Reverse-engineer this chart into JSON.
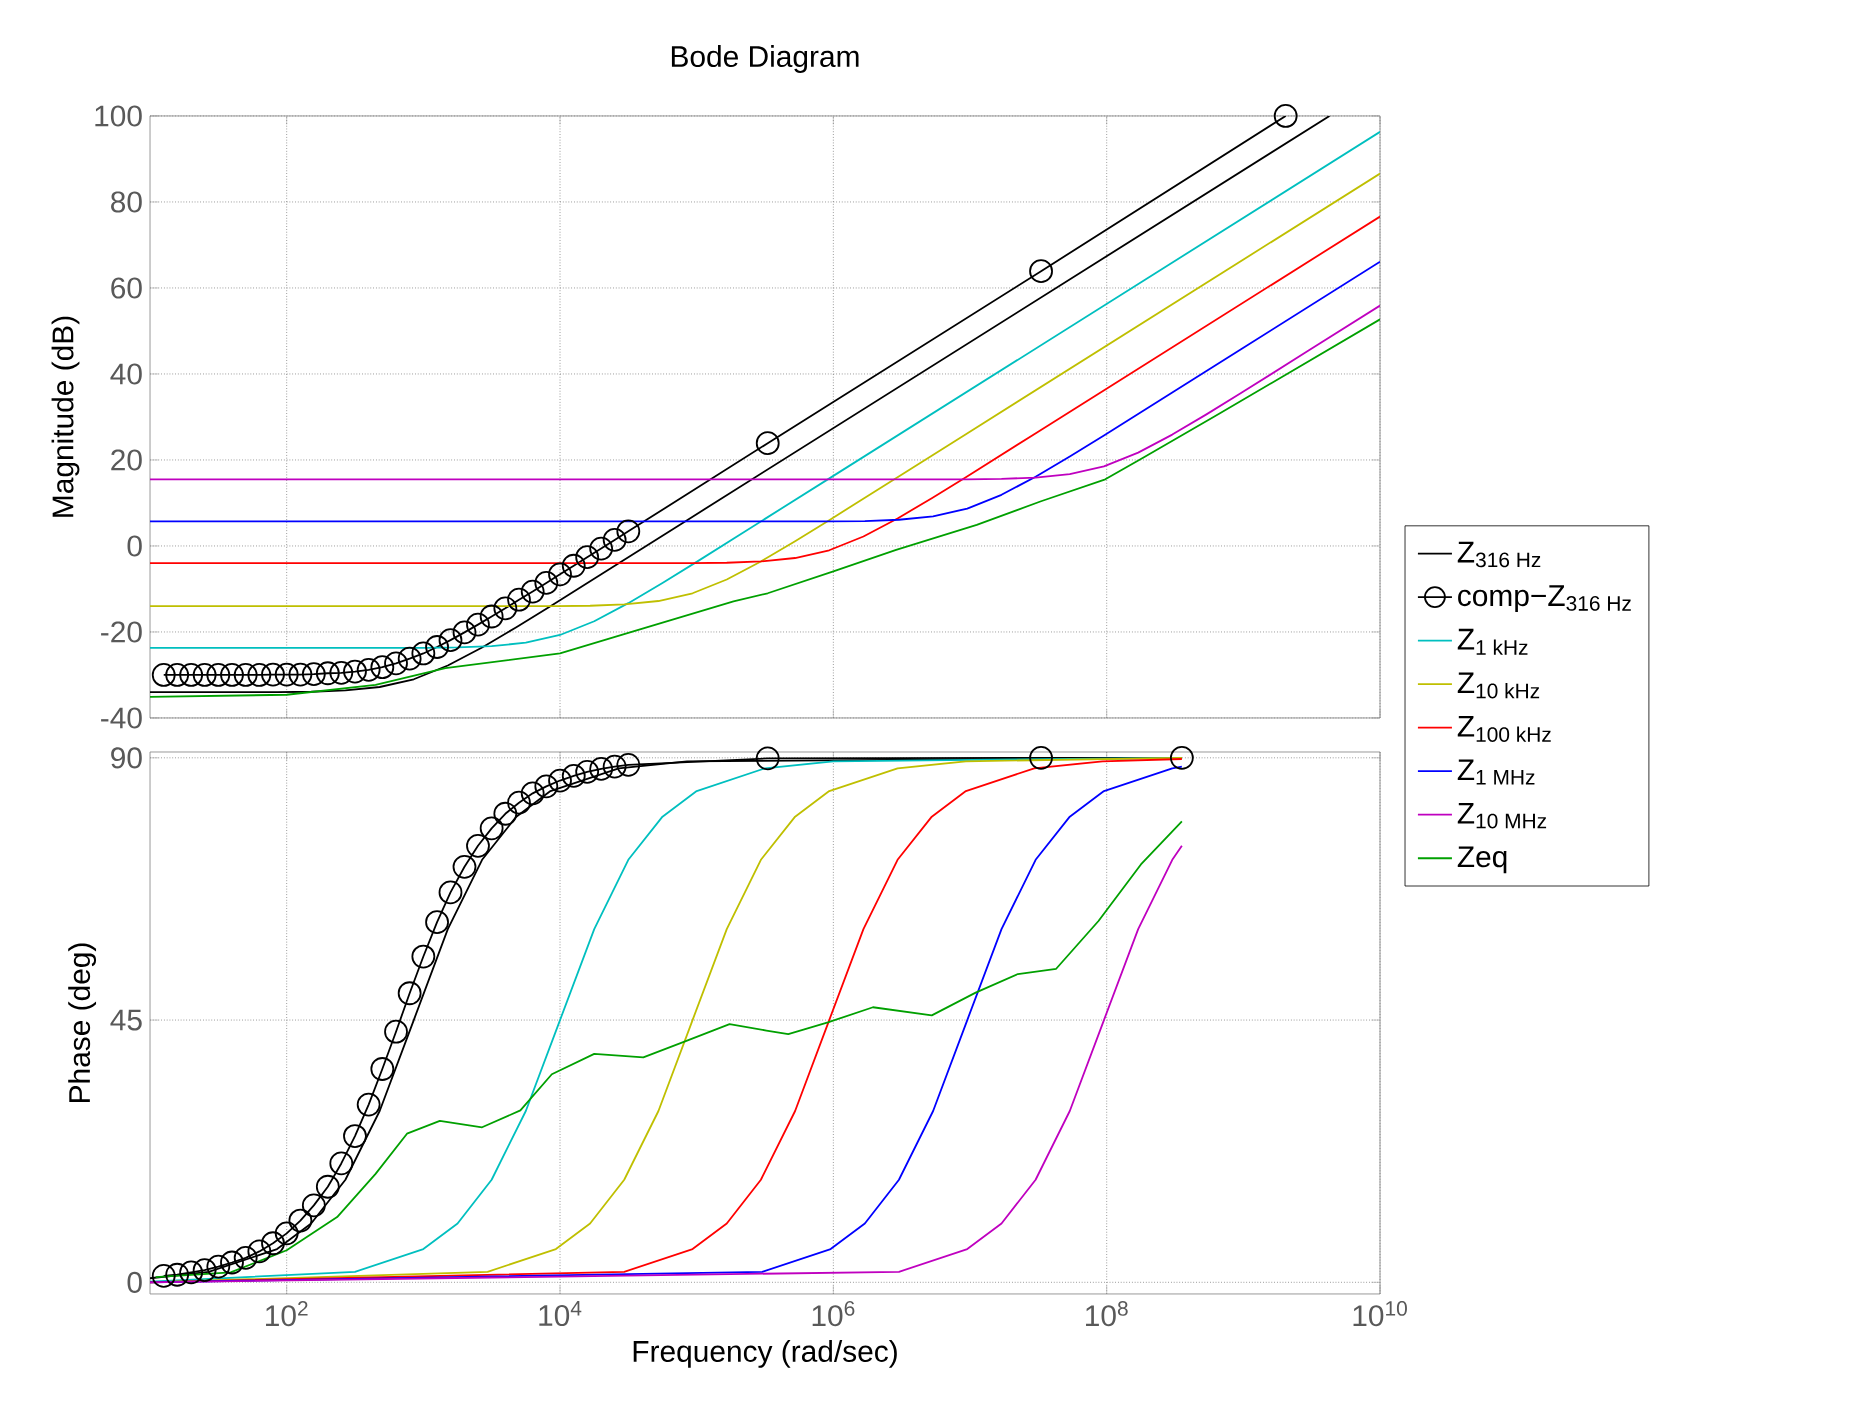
{
  "chart_data": [
    {
      "type": "line",
      "title": "Bode Diagram",
      "ylabel": "Magnitude (dB)",
      "log": "x",
      "grid": true,
      "tick_labels": "y",
      "xlim": [
        10,
        10000000000
      ],
      "ylim": [
        -40,
        100
      ],
      "xticks": [
        {
          "value": 100,
          "label": null
        },
        {
          "value": 10000,
          "label": null
        },
        {
          "value": 1000000,
          "label": null
        },
        {
          "value": 100000000,
          "label": null
        },
        {
          "value": 10000000000,
          "label": null
        }
      ],
      "yticks": [
        -40,
        -20,
        0,
        20,
        40,
        60,
        80,
        100
      ],
      "series": [
        {
          "color": "#000000",
          "x": [
            10.0,
            26.9,
            85.1,
            151.0,
            269.0,
            479.0,
            851.0,
            1510.0,
            2690.0,
            4790.0,
            8510.0,
            26900.0,
            85100.0,
            4270000000.0
          ],
          "values": [
            -34.0,
            -34.0,
            -34.0,
            -33.9,
            -33.6,
            -32.8,
            -31.0,
            -27.8,
            -23.6,
            -18.9,
            -14.0,
            -4.0,
            6.0,
            100
          ]
        },
        {
          "color": "#000000",
          "marker": "circle",
          "x": [
            12.6,
            15.8,
            20.0,
            25.1,
            31.6,
            39.8,
            50.1,
            63.1,
            79.4,
            100.0,
            126.0,
            158.0,
            200.0,
            251.0,
            316.0,
            398.0,
            501.0,
            631.0,
            794.0,
            1000.0,
            1260.0,
            1580.0,
            2000.0,
            2510.0,
            3160.0,
            3980.0,
            5010.0,
            6310.0,
            7940.0,
            10000.0,
            12600.0,
            15800.0,
            20000.0,
            25100.0,
            31600.0,
            331000.0,
            33100000.0,
            2040000000.0
          ],
          "values": [
            -30.0,
            -30.0,
            -30.0,
            -30.0,
            -30.0,
            -30.0,
            -30.0,
            -30.0,
            -29.9,
            -29.9,
            -29.9,
            -29.8,
            -29.6,
            -29.5,
            -29.2,
            -28.8,
            -28.2,
            -27.3,
            -26.2,
            -25.0,
            -23.5,
            -21.9,
            -20.1,
            -18.3,
            -16.4,
            -14.5,
            -12.5,
            -10.6,
            -8.6,
            -6.6,
            -4.6,
            -2.6,
            -0.6,
            1.4,
            3.4,
            23.9,
            63.9,
            100
          ]
        },
        {
          "color": "#00bfbf",
          "x": [
            10.0,
            316.0,
            1000.0,
            1780.0,
            3160.0,
            5620.0,
            10000.0,
            17800.0,
            31600.0,
            56200.0,
            100000.0,
            316000.0,
            1000000.0,
            10000000000.0
          ],
          "values": [
            -23.7,
            -23.7,
            -23.7,
            -23.6,
            -23.3,
            -22.5,
            -20.7,
            -17.5,
            -13.3,
            -8.6,
            -3.7,
            6.3,
            16.3,
            96.3
          ]
        },
        {
          "color": "#bfbf00",
          "x": [
            10.0,
            2950.0,
            9330.0,
            16600.0,
            29500.0,
            52500.0,
            93300.0,
            166000.0,
            295000.0,
            525000.0,
            933000.0,
            2950000.0,
            9330000.0,
            10000000000.0
          ],
          "values": [
            -14.0,
            -14.0,
            -14.0,
            -13.9,
            -13.6,
            -12.8,
            -11.0,
            -7.8,
            -3.6,
            1.1,
            6.0,
            16.0,
            26.0,
            86.6
          ]
        },
        {
          "color": "#ff0000",
          "x": [
            10.0,
            29500.0,
            93300.0,
            166000.0,
            295000.0,
            525000.0,
            933000.0,
            1660000.0,
            2950000.0,
            5250000.0,
            9330000.0,
            29500000.0,
            93300000.0,
            10000000000.0
          ],
          "values": [
            -4.0,
            -4.0,
            -4.0,
            -3.9,
            -3.6,
            -2.8,
            -1.0,
            2.2,
            6.4,
            11.1,
            16.0,
            26.0,
            36.0,
            76.6
          ]
        },
        {
          "color": "#0000ff",
          "x": [
            10.0,
            302000.0,
            955000.0,
            1700000.0,
            3020000.0,
            5370000.0,
            9550000.0,
            17000000.0,
            30200000.0,
            53700000.0,
            95500000.0,
            302000000.0,
            955000000.0,
            10000000000.0
          ],
          "values": [
            5.7,
            5.7,
            5.7,
            5.8,
            6.1,
            6.9,
            8.7,
            11.9,
            16.1,
            20.8,
            25.7,
            35.7,
            45.7,
            66.1
          ]
        },
        {
          "color": "#bf00bf",
          "x": [
            10.0,
            3020000.0,
            9550000.0,
            17000000.0,
            30200000.0,
            53700000.0,
            95500000.0,
            170000000.0,
            302000000.0,
            537000000.0,
            955000000.0,
            3020000000.0,
            10000000000.0
          ],
          "values": [
            15.5,
            15.5,
            15.5,
            15.6,
            15.9,
            16.7,
            18.5,
            21.7,
            25.9,
            30.6,
            35.5,
            45.5,
            55.9
          ]
        },
        {
          "color": "#00a000",
          "x": [
            10.0,
            100.0,
            447.0,
            1450.0,
            10000.0,
            33900.0,
            186000.0,
            331000.0,
            1000000.0,
            2880000.0,
            11200000.0,
            33100000.0,
            97700000.0,
            182000000.0,
            646000000.0,
            10000000000.0
          ],
          "values": [
            -35.1,
            -34.6,
            -32.3,
            -28.4,
            -25.0,
            -19.9,
            -12.9,
            -11.0,
            -5.9,
            -0.9,
            4.9,
            10.4,
            15.5,
            20.4,
            30.5,
            52.7
          ]
        }
      ]
    },
    {
      "type": "line",
      "xlabel": "Frequency  (rad/sec)",
      "ylabel": "Phase (deg)",
      "log": "x",
      "grid": true,
      "legend": "right",
      "xlim": [
        10,
        10000000000
      ],
      "ylim": [
        -2,
        91
      ],
      "xticks": [
        {
          "value": 100,
          "label": "10$^{2}$"
        },
        {
          "value": 10000,
          "label": "10$^{4}$"
        },
        {
          "value": 1000000,
          "label": "10$^{6}$"
        },
        {
          "value": 100000000,
          "label": "10$^{8}$"
        },
        {
          "value": 10000000000,
          "label": "10$^{10}$"
        }
      ],
      "yticks": [
        0,
        45,
        90
      ],
      "series": [
        {
          "name": "Z$_{316 Hz}$",
          "color": "#000000",
          "x": [
            10.0,
            26.9,
            85.1,
            151.0,
            269.0,
            479.0,
            851.0,
            1510.0,
            2690.0,
            4790.0,
            8510.0,
            26900.0,
            85100.0,
            355000000.0
          ],
          "values": [
            0.7,
            1.8,
            5.7,
            10.1,
            17.6,
            29.4,
            45.0,
            60.6,
            72.5,
            79.9,
            84.3,
            88.2,
            89.4,
            90.0
          ]
        },
        {
          "name": "comp−Z$_{316 Hz}$",
          "color": "#000000",
          "marker": "circle",
          "x": [
            12.6,
            15.8,
            20.0,
            25.1,
            31.6,
            39.8,
            50.1,
            63.1,
            79.4,
            100.0,
            126.0,
            158.0,
            200.0,
            251.0,
            316.0,
            398.0,
            501.0,
            631.0,
            794.0,
            1000.0,
            1260.0,
            1580.0,
            2000.0,
            2510.0,
            3160.0,
            3980.0,
            5010.0,
            6310.0,
            7940.0,
            10000.0,
            12600.0,
            15800.0,
            20000.0,
            25100.0,
            31600.0,
            331000.0,
            33100000.0,
            355000000.0
          ],
          "values": [
            1.1,
            1.3,
            1.7,
            2.1,
            2.7,
            3.4,
            4.2,
            5.3,
            6.7,
            8.4,
            10.6,
            13.2,
            16.4,
            20.4,
            25.1,
            30.5,
            36.6,
            43.0,
            49.6,
            55.9,
            61.8,
            66.9,
            71.3,
            74.9,
            77.9,
            80.4,
            82.3,
            83.9,
            85.1,
            86.1,
            86.9,
            87.6,
            88.1,
            88.5,
            88.8,
            89.9,
            90.0,
            90.0
          ]
        },
        {
          "name": "Z$_{1 kHz}$",
          "color": "#00bfbf",
          "x": [
            10.0,
            316.0,
            1000.0,
            1780.0,
            3160.0,
            5620.0,
            10000.0,
            17800.0,
            31600.0,
            56200.0,
            100000.0,
            316000.0,
            1000000.0,
            355000000.0
          ],
          "values": [
            0.1,
            1.8,
            5.7,
            10.1,
            17.6,
            29.4,
            45.0,
            60.6,
            72.5,
            79.9,
            84.3,
            88.2,
            89.4,
            90.0
          ]
        },
        {
          "name": "Z$_{10 kHz}$",
          "color": "#bfbf00",
          "x": [
            10.0,
            2950.0,
            9330.0,
            16600.0,
            29500.0,
            52500.0,
            93300.0,
            166000.0,
            295000.0,
            525000.0,
            933000.0,
            2950000.0,
            9330000.0,
            355000000.0
          ],
          "values": [
            0.0,
            1.8,
            5.7,
            10.1,
            17.6,
            29.4,
            45.0,
            60.6,
            72.5,
            79.9,
            84.3,
            88.2,
            89.4,
            90.0
          ]
        },
        {
          "name": "Z$_{100 kHz}$",
          "color": "#ff0000",
          "x": [
            10.0,
            29500.0,
            93300.0,
            166000.0,
            295000.0,
            525000.0,
            933000.0,
            1660000.0,
            2950000.0,
            5250000.0,
            9330000.0,
            29500000.0,
            93300000.0,
            355000000.0
          ],
          "values": [
            0.0,
            1.8,
            5.7,
            10.1,
            17.6,
            29.4,
            45.0,
            60.6,
            72.5,
            79.9,
            84.3,
            88.2,
            89.4,
            89.8
          ]
        },
        {
          "name": "Z$_{1 MHz}$",
          "color": "#0000ff",
          "x": [
            10.0,
            302000.0,
            955000.0,
            1700000.0,
            3020000.0,
            5370000.0,
            9550000.0,
            17000000.0,
            30200000.0,
            53700000.0,
            95500000.0,
            302000000.0,
            355000000.0
          ],
          "values": [
            0.0,
            1.8,
            5.7,
            10.1,
            17.6,
            29.4,
            45.0,
            60.6,
            72.5,
            79.9,
            84.3,
            88.2,
            88.5
          ]
        },
        {
          "name": "Z$_{10 MHz}$",
          "color": "#bf00bf",
          "x": [
            10.0,
            3020000.0,
            9550000.0,
            17000000.0,
            30200000.0,
            53700000.0,
            95500000.0,
            170000000.0,
            302000000.0,
            355000000.0
          ],
          "values": [
            0.0,
            1.8,
            5.7,
            10.1,
            17.6,
            29.4,
            45.0,
            60.6,
            72.5,
            74.9
          ]
        },
        {
          "name": "Zeq",
          "color": "#00a000",
          "x": [
            11.0,
            38.9,
            100.0,
            234.0,
            447.0,
            759.0,
            1320.0,
            2690.0,
            5130.0,
            8710.0,
            17800.0,
            40700.0,
            83200.0,
            174000.0,
            324000.0,
            468000.0,
            912000.0,
            1950000.0,
            5250000.0,
            11000000.0,
            22400000.0,
            42700000.0,
            87100000.0,
            178000000.0,
            355000000.0
          ],
          "values": [
            0.9,
            1.7,
            5.5,
            11.2,
            18.6,
            25.5,
            27.7,
            26.6,
            29.5,
            35.7,
            39.2,
            38.6,
            41.4,
            44.3,
            43.2,
            42.6,
            44.6,
            47.2,
            45.8,
            49.7,
            52.9,
            53.8,
            62.0,
            71.7,
            79.1
          ]
        }
      ]
    }
  ]
}
